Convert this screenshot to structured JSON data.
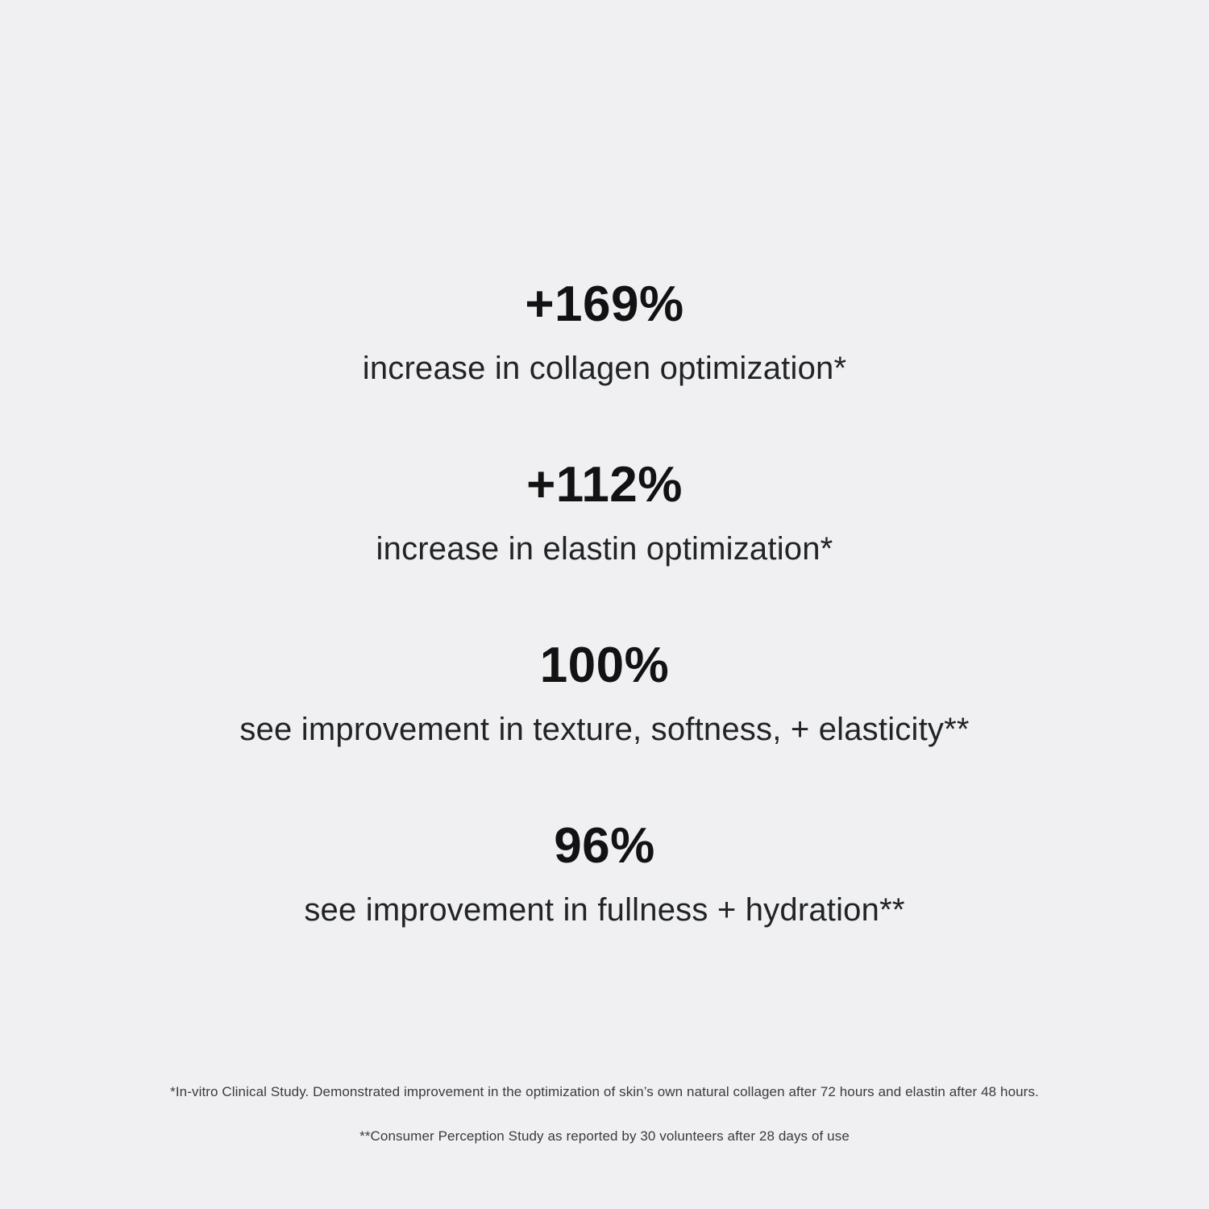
{
  "page": {
    "background_color": "#f0f0f2",
    "heading_color": "#121212",
    "body_color": "#222326",
    "footnote_color": "#3a3b3e"
  },
  "stats": [
    {
      "value": "+169%",
      "description": "increase in collagen optimization*"
    },
    {
      "value": "+112%",
      "description": "increase in elastin optimization*"
    },
    {
      "value": "100%",
      "description": "see improvement in texture, softness, + elasticity**"
    },
    {
      "value": "96%",
      "description": "see improvement in fullness + hydration**"
    }
  ],
  "footnotes": [
    "*In-vitro Clinical Study. Demonstrated improvement in the optimization of skin’s own natural collagen after 72 hours and elastin after 48 hours.",
    "**Consumer Perception Study as reported by 30 volunteers after 28 days of use"
  ]
}
